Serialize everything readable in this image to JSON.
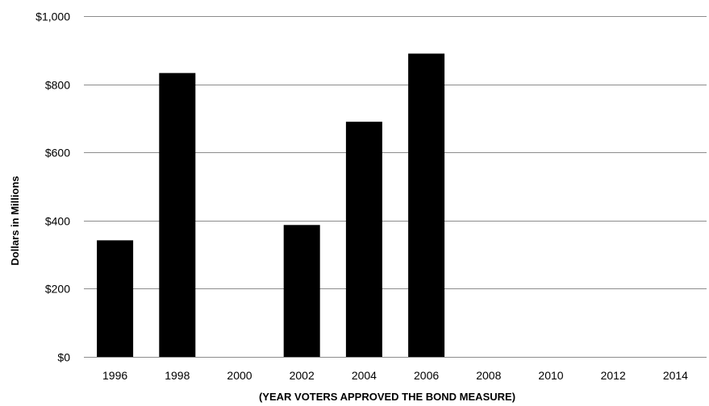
{
  "chart_data": {
    "type": "bar",
    "title": "",
    "xlabel": "(YEAR VOTERS APPROVED THE BOND MEASURE)",
    "ylabel": "Dollars in Millions",
    "categories": [
      "1996",
      "1998",
      "2000",
      "2002",
      "2004",
      "2006",
      "2008",
      "2010",
      "2012",
      "2014"
    ],
    "values": [
      342,
      833,
      0,
      387,
      690,
      890,
      0,
      0,
      0,
      0
    ],
    "ylim": [
      0,
      1000
    ],
    "yticks": [
      0,
      200,
      400,
      600,
      800,
      1000
    ],
    "ytick_labels": [
      "$0",
      "$200",
      "$400",
      "$600",
      "$800",
      "$1,000"
    ],
    "grid": true,
    "legend": "none",
    "bar_color": "#000000",
    "grid_color": "#8c8c8c"
  }
}
